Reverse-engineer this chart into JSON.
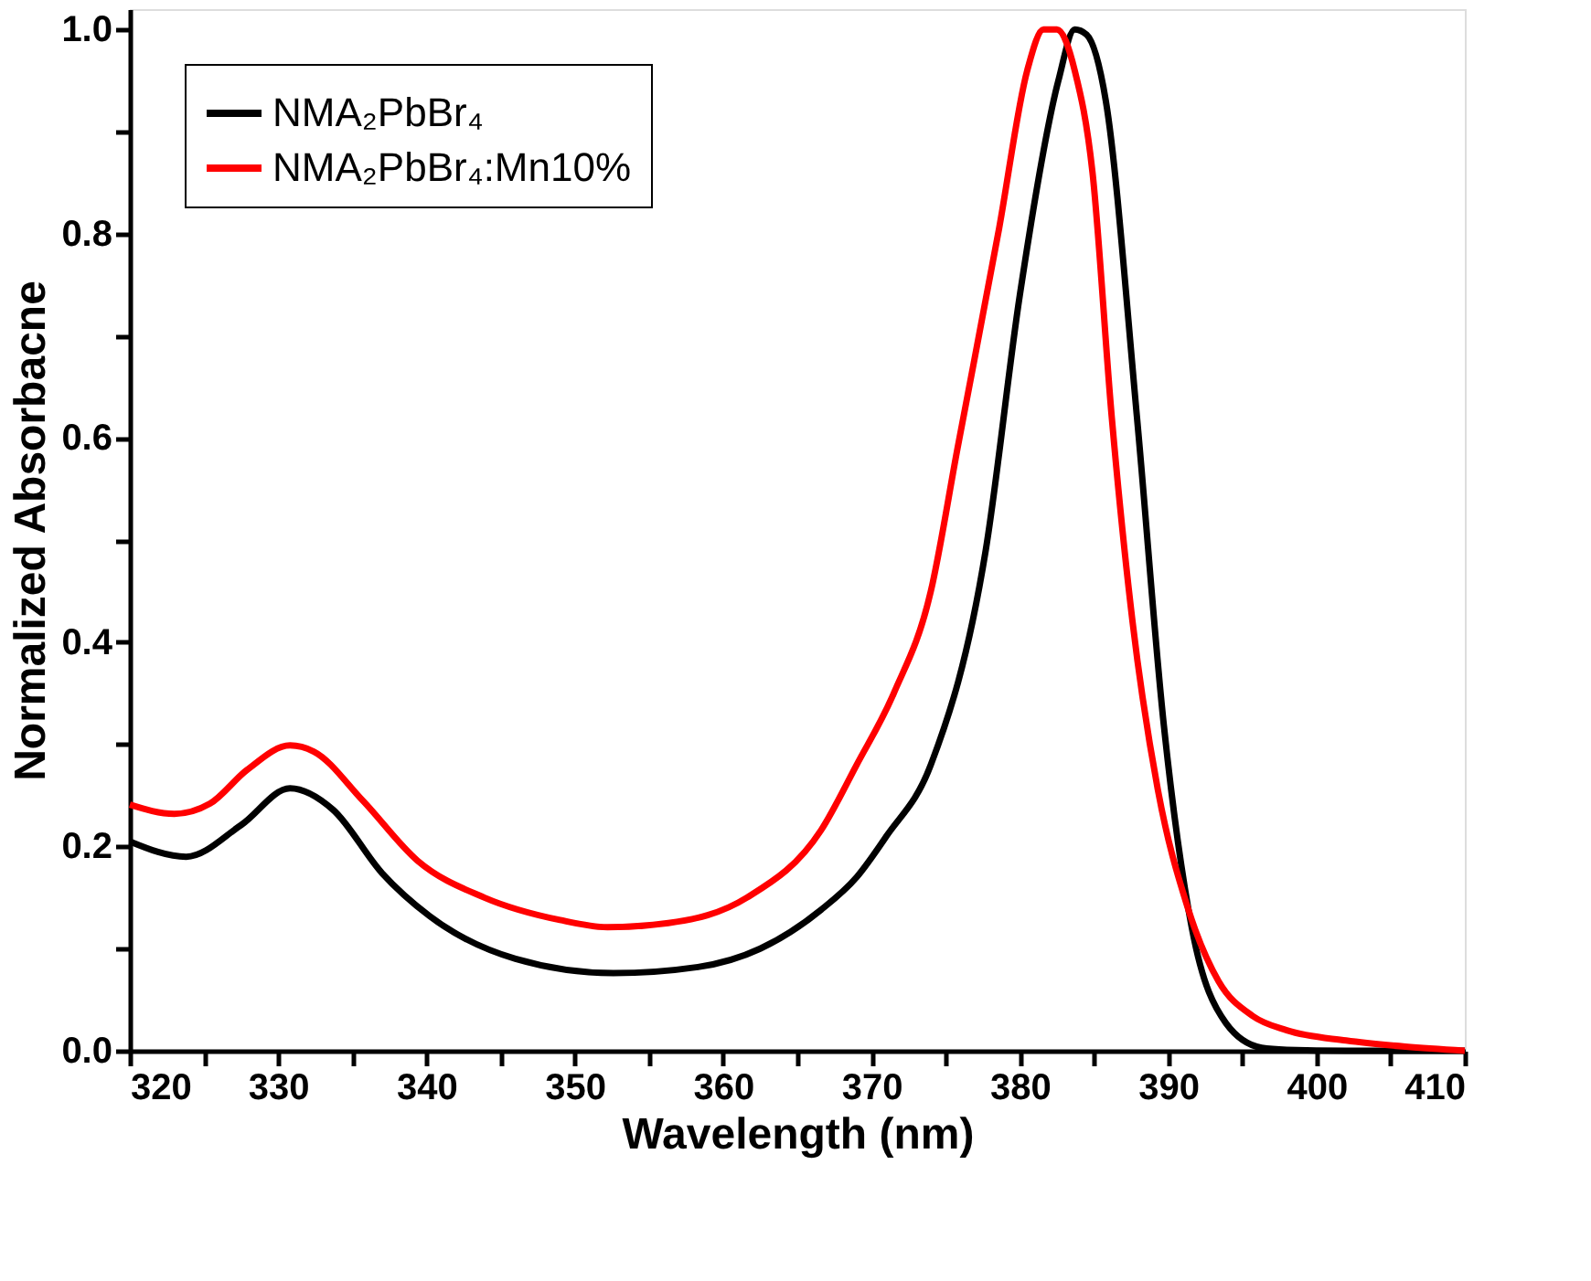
{
  "chart_data": {
    "type": "line",
    "xlabel": "Wavelength (nm)",
    "ylabel": "Normalized Absorbacne",
    "series": [
      {
        "name": "NMA₂PbBr₄",
        "color": "#000000",
        "x": [
          320,
          323.8,
          327.5,
          330.8,
          333.7,
          337,
          340.2,
          346,
          352.6,
          358.3,
          362.5,
          366.6,
          369,
          371,
          374,
          377.7,
          380,
          382.6,
          383.7,
          384.5,
          385.8,
          387.9,
          389.7,
          391.6,
          393.9,
          396.3,
          398,
          402,
          410
        ],
        "values": [
          0.205,
          0.19,
          0.221,
          0.257,
          0.236,
          0.174,
          0.132,
          0.09,
          0.076,
          0.082,
          0.1,
          0.138,
          0.17,
          0.21,
          0.28,
          0.49,
          0.74,
          0.95,
          1.0,
          0.995,
          0.93,
          0.62,
          0.32,
          0.12,
          0.027,
          0.003,
          0.001,
          0,
          0
        ]
      },
      {
        "name": "NMA₂PbBr₄:Mn10%",
        "color": "#ff0000",
        "x": [
          320,
          323,
          325.4,
          327.9,
          330.8,
          332.4,
          335.7,
          339.4,
          343.9,
          349,
          352.2,
          356.3,
          361.6,
          366.6,
          369,
          371.5,
          374,
          375.8,
          378.6,
          380.5,
          381.6,
          382.5,
          383.7,
          384.9,
          386.2,
          387.6,
          389.3,
          391.3,
          393.4,
          395.7,
          398,
          402,
          406,
          410
        ],
        "values": [
          0.241,
          0.232,
          0.242,
          0.275,
          0.299,
          0.293,
          0.245,
          0.186,
          0.15,
          0.128,
          0.121,
          0.125,
          0.15,
          0.216,
          0.28,
          0.35,
          0.45,
          0.59,
          0.805,
          0.96,
          1.0,
          1.0,
          0.96,
          0.86,
          0.62,
          0.42,
          0.256,
          0.141,
          0.068,
          0.034,
          0.02,
          0.01,
          0.004,
          0
        ]
      }
    ],
    "xlim": [
      320,
      410
    ],
    "xticks": [
      320,
      {
        "value": 325,
        "label": null
      },
      330,
      {
        "value": 335,
        "label": null
      },
      340,
      {
        "value": 345,
        "label": null
      },
      350,
      {
        "value": 355,
        "label": null
      },
      360,
      {
        "value": 365,
        "label": null
      },
      370,
      {
        "value": 375,
        "label": null
      },
      380,
      {
        "value": 385,
        "label": null
      },
      390,
      {
        "value": 395,
        "label": null
      },
      400,
      {
        "value": 405,
        "label": null
      },
      410
    ],
    "ylim": [
      0,
      1.02
    ],
    "yticks": [
      {
        "value": 0,
        "label": "0.0"
      },
      {
        "value": 0.1,
        "label": null
      },
      {
        "value": 0.2,
        "label": "0.2"
      },
      {
        "value": 0.3,
        "label": null
      },
      {
        "value": 0.4,
        "label": "0.4"
      },
      {
        "value": 0.5,
        "label": null
      },
      {
        "value": 0.6,
        "label": "0.6"
      },
      {
        "value": 0.7,
        "label": null
      },
      {
        "value": 0.8,
        "label": "0.8"
      },
      {
        "value": 0.9,
        "label": null
      },
      {
        "value": 1,
        "label": "1.0"
      }
    ],
    "grid": false,
    "legend": "top left",
    "marker": "none",
    "line_style": "solid"
  }
}
